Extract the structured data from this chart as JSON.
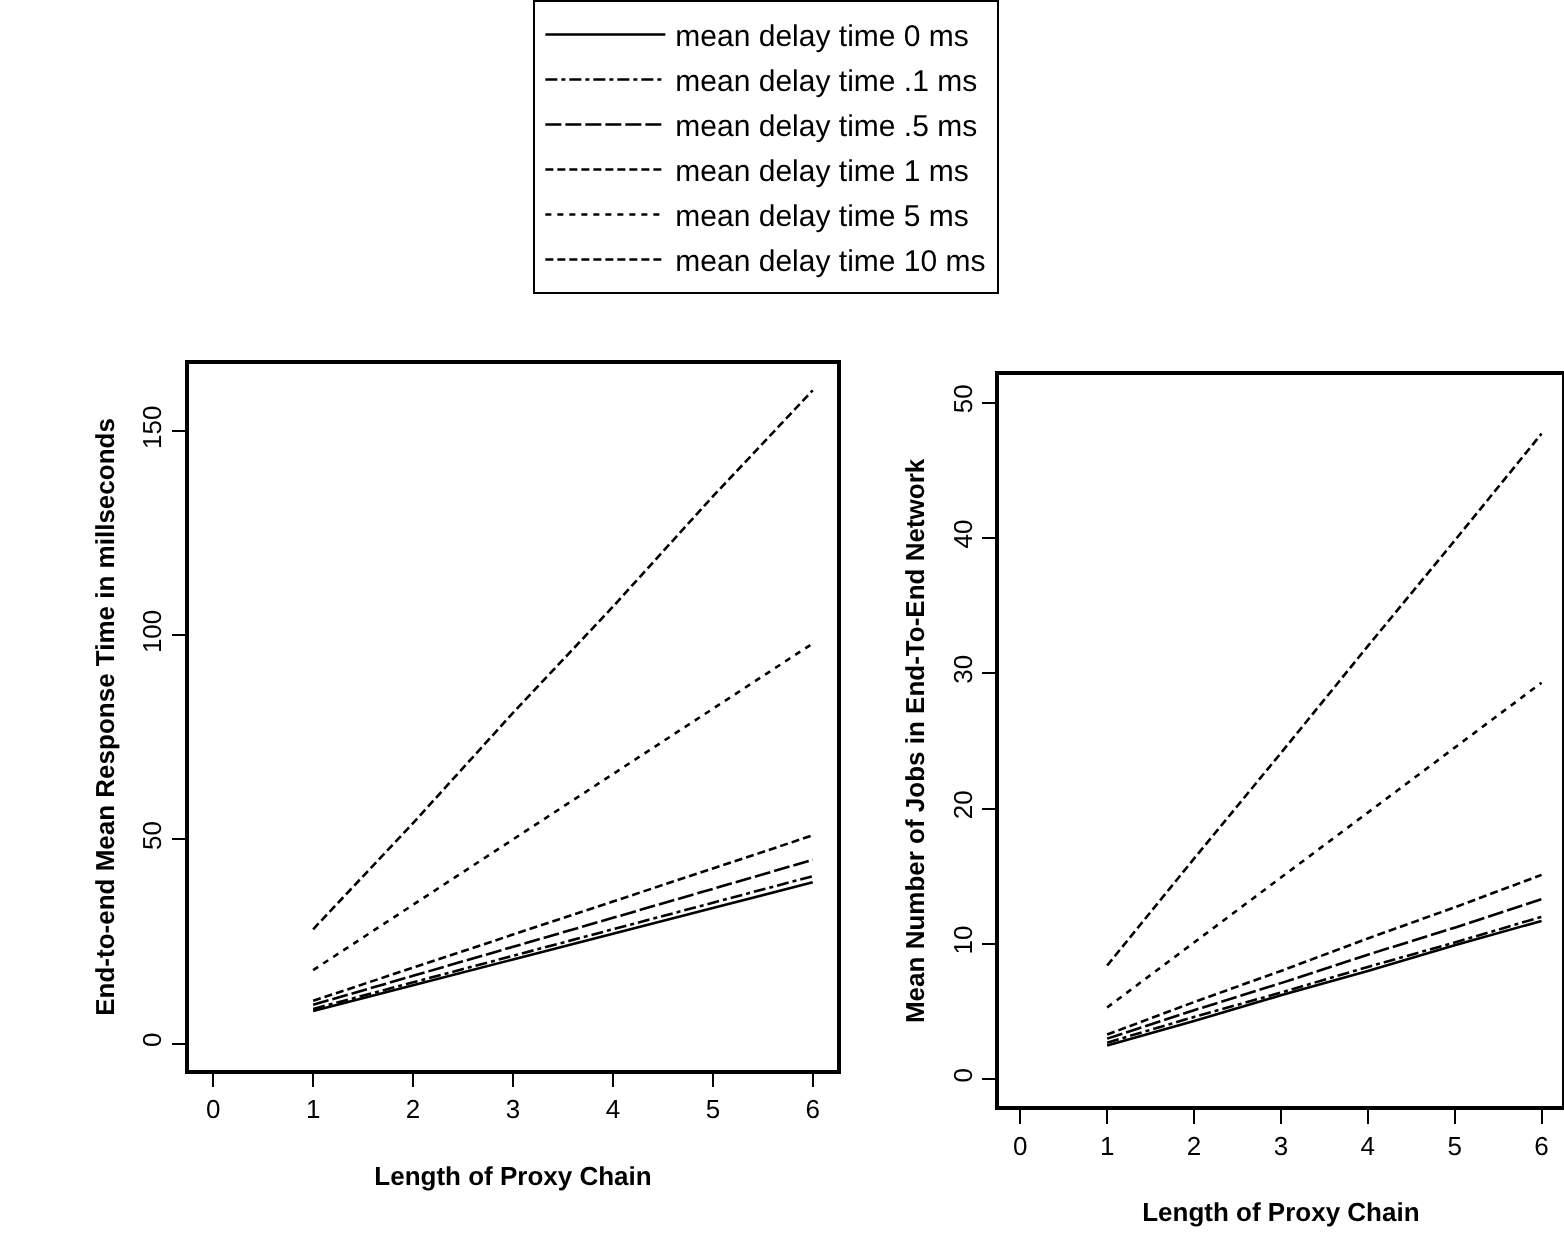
{
  "chart_data": [
    {
      "type": "line",
      "xlabel": "Length of Proxy Chain",
      "ylabel": "End-to-end Mean Response Time in millseconds",
      "x": [
        1,
        2,
        3,
        4,
        5,
        6
      ],
      "xlim": [
        -0.24,
        6.24
      ],
      "xticks": [
        0,
        1,
        2,
        3,
        4,
        5,
        6
      ],
      "ylim": [
        -6.4,
        166.4
      ],
      "yticks": [
        0,
        50,
        100,
        150
      ],
      "legend": "top",
      "series": [
        {
          "name": "mean delay time 0 ms",
          "color": "#000000",
          "line_style": "solid",
          "values": [
            8,
            14.3,
            20.6,
            26.9,
            33.2,
            39.5
          ]
        },
        {
          "name": "mean delay time .1 ms",
          "color": "#000000",
          "line_style": "dashdot",
          "values": [
            8.5,
            15,
            21.5,
            28,
            34.5,
            41
          ]
        },
        {
          "name": "mean delay time .5 ms",
          "color": "#000000",
          "line_style": "longdash",
          "values": [
            9.5,
            16.6,
            23.7,
            30.8,
            37.9,
            45
          ]
        },
        {
          "name": "mean delay time 1 ms",
          "color": "#000000",
          "line_style": "dashed",
          "values": [
            10.5,
            18.6,
            26.7,
            34.8,
            42.9,
            51
          ]
        },
        {
          "name": "mean delay time 5 ms",
          "color": "#000000",
          "line_style": "dotted",
          "values": [
            18,
            34,
            50,
            66,
            82,
            98
          ]
        },
        {
          "name": "mean delay time 10 ms",
          "color": "#000000",
          "line_style": "dashed",
          "values": [
            28,
            54,
            81,
            107,
            134,
            160
          ]
        }
      ]
    },
    {
      "type": "line",
      "xlabel": "Length of Proxy Chain",
      "ylabel": "Mean Number of Jobs in End-To-End Network",
      "x": [
        1,
        2,
        3,
        4,
        5,
        6
      ],
      "xlim": [
        -0.24,
        6.24
      ],
      "xticks": [
        0,
        1,
        2,
        3,
        4,
        5,
        6
      ],
      "ylim": [
        -2,
        52
      ],
      "yticks": [
        0,
        10,
        20,
        30,
        40,
        50
      ],
      "series": [
        {
          "color": "#000000",
          "line_style": "solid",
          "values": [
            2.5,
            4.3,
            6.2,
            8,
            9.9,
            11.7
          ]
        },
        {
          "color": "#000000",
          "line_style": "dashdot",
          "values": [
            2.7,
            4.6,
            6.4,
            8.3,
            10.1,
            12
          ]
        },
        {
          "color": "#000000",
          "line_style": "longdash",
          "values": [
            3,
            5.1,
            7.1,
            9.2,
            11.2,
            13.3
          ]
        },
        {
          "color": "#000000",
          "line_style": "dashed",
          "values": [
            3.3,
            5.7,
            8,
            10.4,
            12.7,
            15.1
          ]
        },
        {
          "color": "#000000",
          "line_style": "dotted",
          "values": [
            5.3,
            10.1,
            14.9,
            19.7,
            24.5,
            29.3
          ]
        },
        {
          "color": "#000000",
          "line_style": "dashed",
          "values": [
            8.4,
            16.3,
            24.1,
            32,
            39.8,
            47.7
          ]
        }
      ]
    }
  ]
}
